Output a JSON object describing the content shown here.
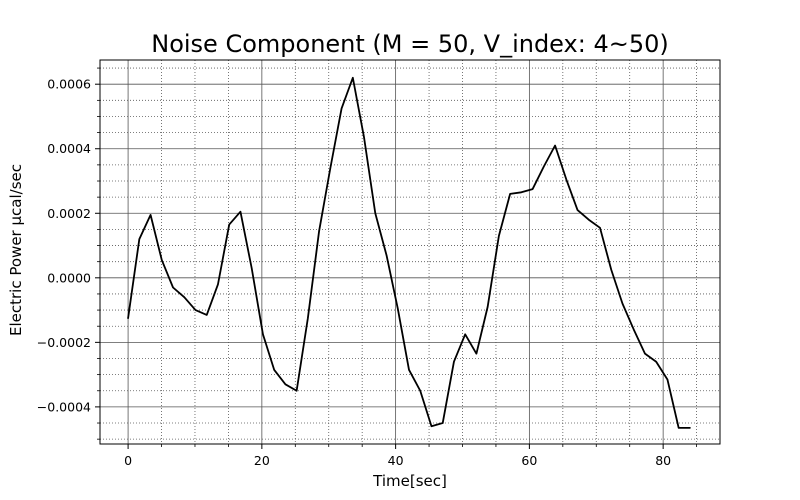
{
  "chart_data": {
    "type": "line",
    "title": "Noise Component (M = 50, V_index: 4~50)",
    "xlabel": "Time[sec]",
    "ylabel": "Electric Power μcal/sec",
    "xlim": [
      -4.2,
      88.5
    ],
    "ylim": [
      -0.000515,
      0.000675
    ],
    "xticks": [
      0,
      20,
      40,
      60,
      80
    ],
    "xtick_labels": [
      "0",
      "20",
      "40",
      "60",
      "80"
    ],
    "yticks": [
      -0.0004,
      -0.0002,
      0.0,
      0.0002,
      0.0004,
      0.0006
    ],
    "ytick_labels": [
      "−0.0004",
      "−0.0002",
      "0.0000",
      "0.0002",
      "0.0004",
      "0.0006"
    ],
    "grid": true,
    "minor_grid": true,
    "line_color": "#000000",
    "series": [
      {
        "x": [
          0.0,
          1.68,
          3.36,
          5.04,
          6.72,
          8.4,
          10.08,
          11.76,
          13.44,
          15.12,
          16.8,
          18.48,
          20.16,
          21.84,
          23.52,
          25.2,
          26.88,
          28.56,
          30.24,
          31.92,
          33.6,
          35.28,
          36.96,
          38.64,
          40.32,
          42.0,
          43.68,
          45.36,
          47.04,
          48.72,
          50.4,
          52.08,
          53.76,
          55.44,
          57.12,
          58.8,
          60.48,
          62.16,
          63.84,
          65.52,
          67.2,
          68.88,
          70.56,
          72.24,
          73.92,
          75.6,
          77.28,
          78.96,
          80.64,
          82.32,
          84.0
        ],
        "y": [
          -0.000125,
          0.00012,
          0.000195,
          5.5e-05,
          -3e-05,
          -6e-05,
          -0.0001,
          -0.000115,
          -2e-05,
          0.000165,
          0.000205,
          3e-05,
          -0.000175,
          -0.000285,
          -0.00033,
          -0.00035,
          -0.000125,
          0.000145,
          0.00034,
          0.000525,
          0.00062,
          0.000435,
          0.0002,
          7e-05,
          -9.5e-05,
          -0.000285,
          -0.00035,
          -0.00046,
          -0.00045,
          -0.00026,
          -0.000175,
          -0.000235,
          -9e-05,
          0.00013,
          0.00026,
          0.000265,
          0.000275,
          0.000345,
          0.00041,
          0.000305,
          0.00021,
          0.00018,
          0.000155,
          2.5e-05,
          -8e-05,
          -0.00016,
          -0.000235,
          -0.00026,
          -0.000315,
          -0.000465,
          -0.000465
        ]
      }
    ]
  }
}
